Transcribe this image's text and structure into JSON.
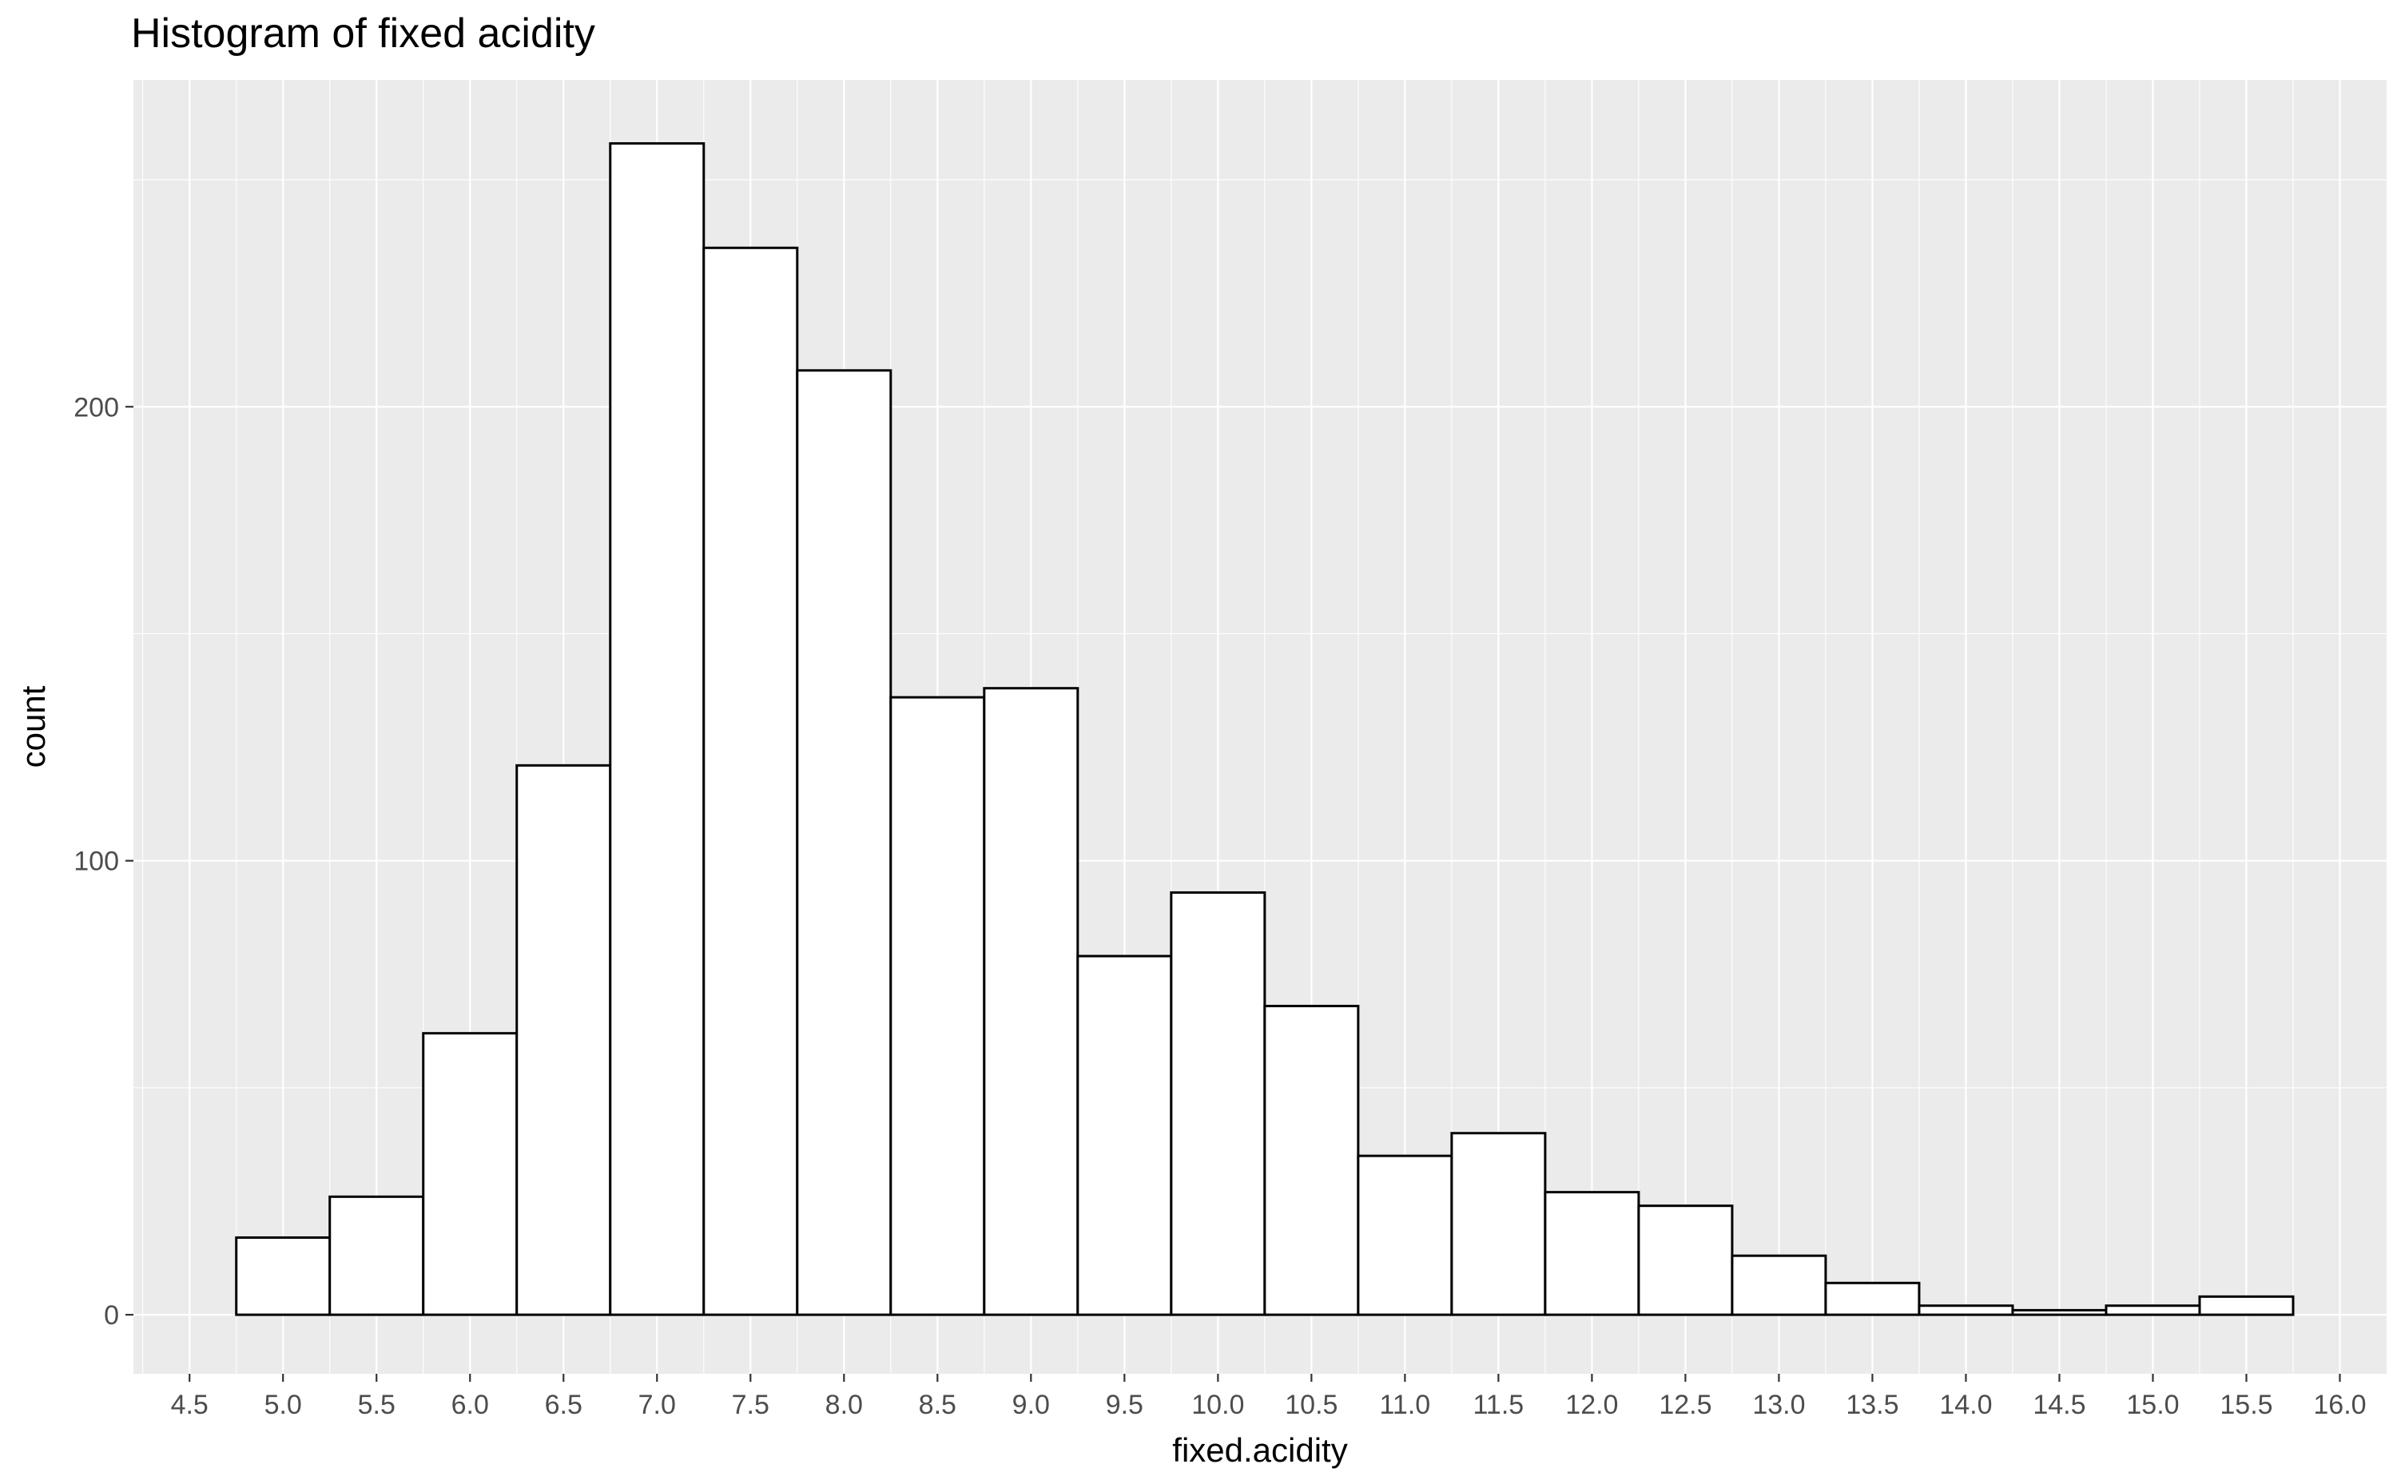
{
  "chart_data": {
    "type": "bar",
    "subtype": "histogram",
    "title": "Histogram of fixed acidity",
    "xlabel": "fixed.acidity",
    "ylabel": "count",
    "bin_width": 0.5,
    "bins": [
      {
        "start": 4.75,
        "end": 5.25,
        "count": 17
      },
      {
        "start": 5.25,
        "end": 5.75,
        "count": 26
      },
      {
        "start": 5.75,
        "end": 6.25,
        "count": 62
      },
      {
        "start": 6.25,
        "end": 6.75,
        "count": 121
      },
      {
        "start": 6.75,
        "end": 7.25,
        "count": 258
      },
      {
        "start": 7.25,
        "end": 7.75,
        "count": 235
      },
      {
        "start": 7.75,
        "end": 8.25,
        "count": 208
      },
      {
        "start": 8.25,
        "end": 8.75,
        "count": 136
      },
      {
        "start": 8.75,
        "end": 9.25,
        "count": 138
      },
      {
        "start": 9.25,
        "end": 9.75,
        "count": 79
      },
      {
        "start": 9.75,
        "end": 10.25,
        "count": 93
      },
      {
        "start": 10.25,
        "end": 10.75,
        "count": 68
      },
      {
        "start": 10.75,
        "end": 11.25,
        "count": 35
      },
      {
        "start": 11.25,
        "end": 11.75,
        "count": 40
      },
      {
        "start": 11.75,
        "end": 12.25,
        "count": 27
      },
      {
        "start": 12.25,
        "end": 12.75,
        "count": 24
      },
      {
        "start": 12.75,
        "end": 13.25,
        "count": 13
      },
      {
        "start": 13.25,
        "end": 13.75,
        "count": 7
      },
      {
        "start": 13.75,
        "end": 14.25,
        "count": 2
      },
      {
        "start": 14.25,
        "end": 14.75,
        "count": 1
      },
      {
        "start": 14.75,
        "end": 15.25,
        "count": 2
      },
      {
        "start": 15.25,
        "end": 15.75,
        "count": 4
      }
    ],
    "x_ticks": [
      "4.5",
      "5.0",
      "5.5",
      "6.0",
      "6.5",
      "7.0",
      "7.5",
      "8.0",
      "8.5",
      "9.0",
      "9.5",
      "10.0",
      "10.5",
      "11.0",
      "11.5",
      "12.0",
      "12.5",
      "13.0",
      "13.5",
      "14.0",
      "14.5",
      "15.0",
      "15.5",
      "16.0"
    ],
    "y_ticks": [
      "0",
      "100",
      "200"
    ],
    "xlim": [
      4.2,
      16.25
    ],
    "ylim": [
      -13,
      272
    ],
    "grid": true,
    "colors": {
      "panel_background": "#ebebeb",
      "grid_line": "#ffffff",
      "bar_fill": "#ffffff",
      "bar_outline": "#000000",
      "tick_label": "#4d4d4d"
    }
  }
}
